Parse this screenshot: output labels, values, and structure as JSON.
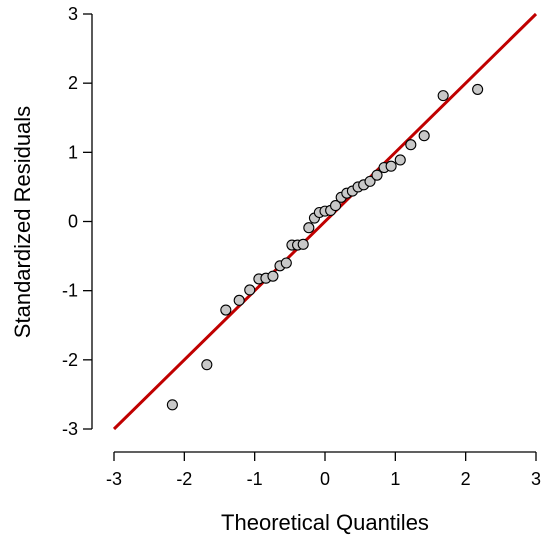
{
  "chart_data": {
    "type": "scatter",
    "title": "",
    "xlabel": "Theoretical Quantiles",
    "ylabel": "Standardized Residuals",
    "xlim": [
      -3,
      3
    ],
    "ylim": [
      -3,
      3
    ],
    "x_ticks": [
      "-3",
      "-2",
      "-1",
      "0",
      "1",
      "2",
      "3"
    ],
    "y_ticks": [
      "-3",
      "-2",
      "-1",
      "0",
      "1",
      "2",
      "3"
    ],
    "grid": false,
    "legend": "none",
    "reference_line": {
      "slope": 1,
      "intercept": 0,
      "color": "#c00000"
    },
    "point_fill": "#c8c8c8",
    "point_stroke": "#000000",
    "points": [
      {
        "x": -2.17,
        "y": -2.65
      },
      {
        "x": -1.68,
        "y": -2.07
      },
      {
        "x": -1.41,
        "y": -1.28
      },
      {
        "x": -1.22,
        "y": -1.14
      },
      {
        "x": -1.07,
        "y": -0.99
      },
      {
        "x": -0.94,
        "y": -0.83
      },
      {
        "x": -0.84,
        "y": -0.82
      },
      {
        "x": -0.74,
        "y": -0.79
      },
      {
        "x": -0.64,
        "y": -0.64
      },
      {
        "x": -0.55,
        "y": -0.6
      },
      {
        "x": -0.47,
        "y": -0.34
      },
      {
        "x": -0.39,
        "y": -0.34
      },
      {
        "x": -0.31,
        "y": -0.33
      },
      {
        "x": -0.23,
        "y": -0.09
      },
      {
        "x": -0.15,
        "y": 0.05
      },
      {
        "x": -0.08,
        "y": 0.13
      },
      {
        "x": 0.0,
        "y": 0.15
      },
      {
        "x": 0.08,
        "y": 0.16
      },
      {
        "x": 0.15,
        "y": 0.23
      },
      {
        "x": 0.23,
        "y": 0.35
      },
      {
        "x": 0.31,
        "y": 0.41
      },
      {
        "x": 0.39,
        "y": 0.44
      },
      {
        "x": 0.47,
        "y": 0.5
      },
      {
        "x": 0.55,
        "y": 0.53
      },
      {
        "x": 0.64,
        "y": 0.58
      },
      {
        "x": 0.74,
        "y": 0.67
      },
      {
        "x": 0.84,
        "y": 0.78
      },
      {
        "x": 0.94,
        "y": 0.8
      },
      {
        "x": 1.07,
        "y": 0.89
      },
      {
        "x": 1.22,
        "y": 1.11
      },
      {
        "x": 1.41,
        "y": 1.24
      },
      {
        "x": 1.68,
        "y": 1.82
      },
      {
        "x": 2.17,
        "y": 1.91
      }
    ]
  }
}
